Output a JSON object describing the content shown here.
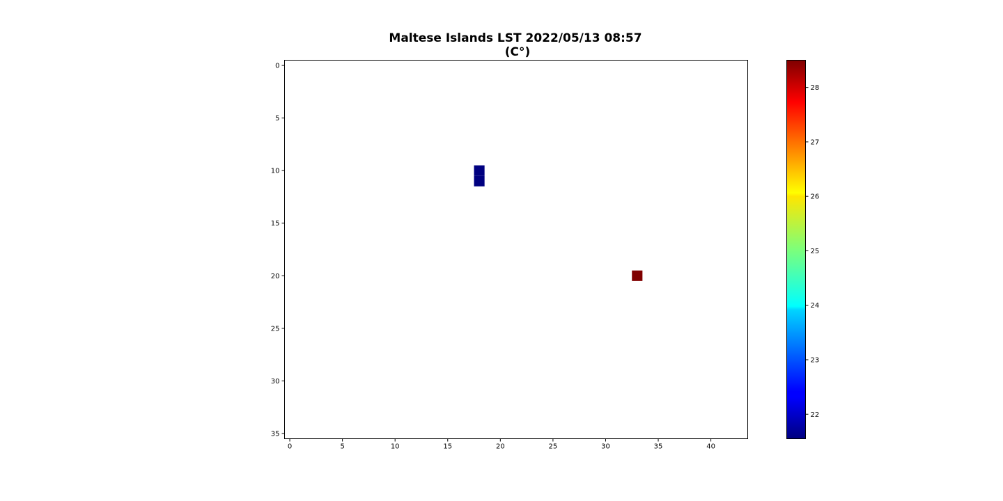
{
  "chart_data": {
    "type": "heatmap",
    "title_lines": [
      "Maltese Islands LST 2022/05/13 08:57",
      "(C°)"
    ],
    "xlabel": "",
    "ylabel": "",
    "xlim": [
      -0.5,
      43.5
    ],
    "ylim": [
      35.5,
      -0.5
    ],
    "y_inverted": true,
    "x_ticks": [
      0,
      5,
      10,
      15,
      20,
      25,
      30,
      35,
      40
    ],
    "y_ticks": [
      0,
      5,
      10,
      15,
      20,
      25,
      30,
      35
    ],
    "grid": false,
    "colormap": "jet",
    "colorbar": {
      "min": 21.55,
      "max": 28.5,
      "ticks": [
        22,
        23,
        24,
        25,
        26,
        27,
        28
      ],
      "placement": "right"
    },
    "cells": [
      {
        "col": 18,
        "row": 10,
        "value": 21.55
      },
      {
        "col": 18,
        "row": 11,
        "value": 21.55
      },
      {
        "col": 33,
        "row": 20,
        "value": 28.5
      }
    ],
    "missing_value_color": "#ffffff"
  }
}
